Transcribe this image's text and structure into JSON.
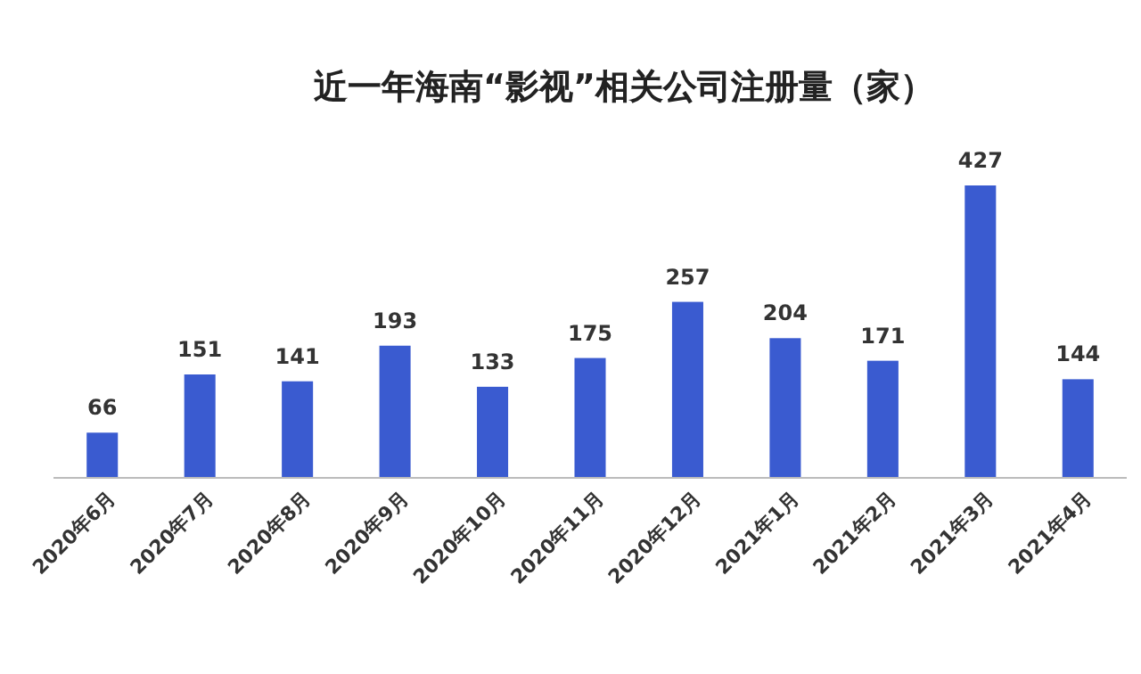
{
  "chart_data": {
    "type": "bar",
    "title": "近一年海南“影视”相关公司注册量（家）",
    "categories": [
      "2020年6月",
      "2020年7月",
      "2020年8月",
      "2020年9月",
      "2020年10月",
      "2020年11月",
      "2020年12月",
      "2021年1月",
      "2021年2月",
      "2021年3月",
      "2021年4月"
    ],
    "values": [
      66,
      151,
      141,
      193,
      133,
      175,
      257,
      204,
      171,
      427,
      144
    ],
    "color": "#3a5bd0",
    "data_labels": true
  }
}
